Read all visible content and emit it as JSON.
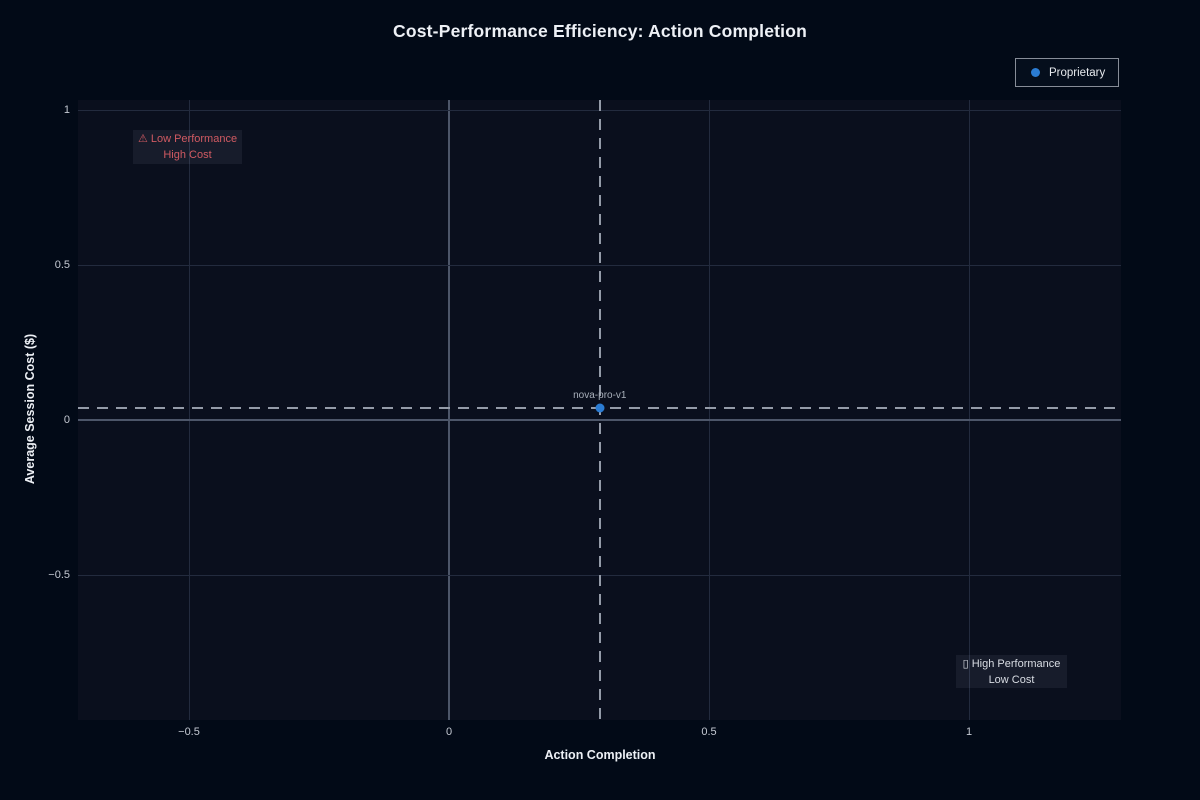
{
  "chart_data": {
    "type": "scatter",
    "title": "Cost-Performance Efficiency: Action Completion",
    "xlabel": "Action Completion",
    "ylabel": "Average Session Cost ($)",
    "xlim": [
      -0.71,
      1.29
    ],
    "ylim": [
      -0.97,
      1.03
    ],
    "x_ticks": [
      -0.5,
      0,
      0.5,
      1
    ],
    "x_tick_labels": [
      "−0.5",
      "0",
      "0.5",
      "1"
    ],
    "y_ticks": [
      -0.5,
      0,
      0.5,
      1
    ],
    "y_tick_labels": [
      "−0.5",
      "0",
      "0.5",
      "1"
    ],
    "grid": true,
    "legend_position": "top-right-outside",
    "series": [
      {
        "name": "Proprietary",
        "color": "#2b7cd3",
        "points": [
          {
            "label": "nova-pro-v1",
            "x": 0.29,
            "y": 0.04
          }
        ]
      }
    ],
    "reference_lines": [
      {
        "axis": "x",
        "value": 0.29,
        "style": "dashed"
      },
      {
        "axis": "y",
        "value": 0.04,
        "style": "dashed"
      }
    ],
    "annotations": [
      {
        "corner": "top-left",
        "line1": "⚠ Low Performance",
        "line2": "High Cost",
        "color": "#d05a62"
      },
      {
        "corner": "bottom-right",
        "line1": "▯ High Performance",
        "line2": "Low Cost",
        "color": "#d8dce3"
      }
    ]
  },
  "legend": {
    "items": [
      {
        "label": "Proprietary",
        "color": "#2b7cd3"
      }
    ]
  },
  "colors": {
    "page_background": "#020a17",
    "plot_background": "#0a0f1d",
    "gridline": "#232b3e",
    "zero_line": "#4d5669",
    "dashed_line": "#949ba8",
    "title_text": "#eef1f6",
    "tick_text": "#c5cad3"
  }
}
